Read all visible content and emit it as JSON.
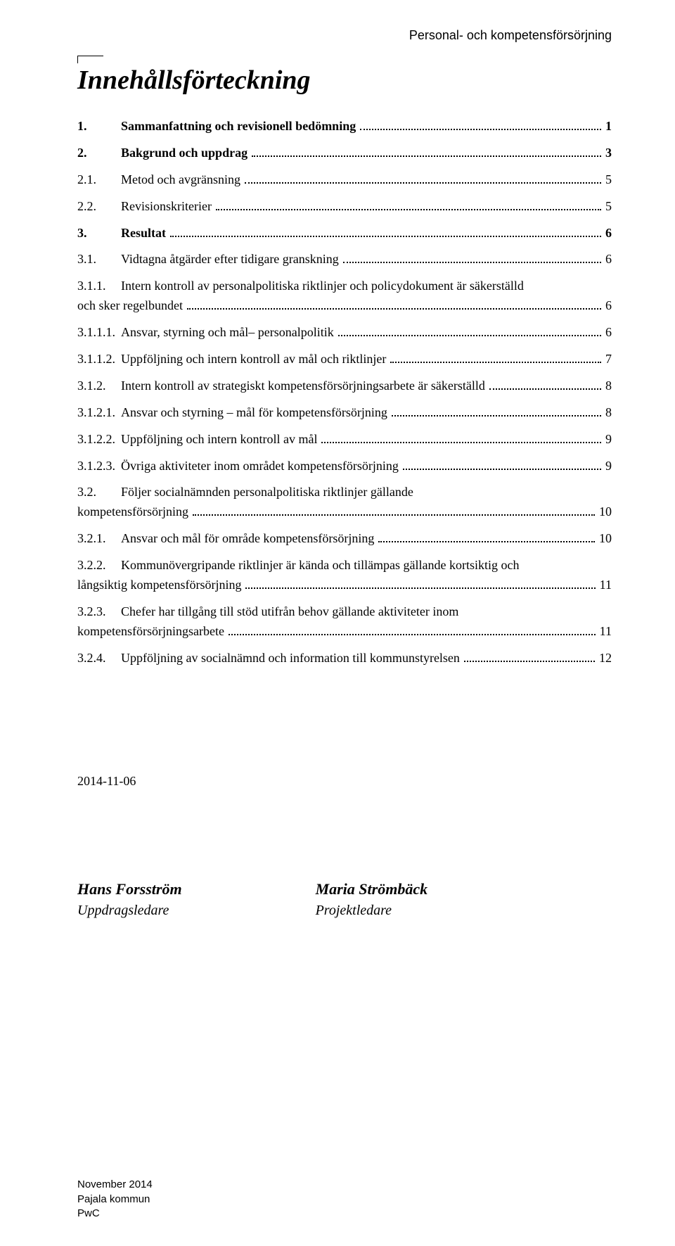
{
  "header_right": "Personal- och kompetensförsörjning",
  "title": "Innehållsförteckning",
  "toc": [
    {
      "num": "1.",
      "label": "Sammanfattning och revisionell bedömning",
      "page": "1",
      "bold": true
    },
    {
      "num": "2.",
      "label": "Bakgrund och uppdrag",
      "page": "3",
      "bold": true
    },
    {
      "num": "2.1.",
      "label": "Metod och avgränsning",
      "page": "5",
      "bold": false
    },
    {
      "num": "2.2.",
      "label": "Revisionskriterier",
      "page": "5",
      "bold": false
    },
    {
      "num": "3.",
      "label": "Resultat",
      "page": "6",
      "bold": true
    },
    {
      "num": "3.1.",
      "label": "Vidtagna åtgärder efter tidigare granskning",
      "page": "6",
      "bold": false
    },
    {
      "num": "3.1.1.",
      "label": "Intern kontroll av personalpolitiska riktlinjer och policydokument är säkerställd",
      "label2": "och sker regelbundet",
      "page": "6",
      "bold": false,
      "wrap": true
    },
    {
      "num": "3.1.1.1.",
      "label": "Ansvar, styrning och mål– personalpolitik",
      "page": "6",
      "bold": false
    },
    {
      "num": "3.1.1.2.",
      "label": "Uppföljning och intern kontroll av mål och riktlinjer",
      "page": "7",
      "bold": false
    },
    {
      "num": "3.1.2.",
      "label": "Intern kontroll av strategiskt kompetensförsörjningsarbete är säkerställd",
      "page": "8",
      "bold": false
    },
    {
      "num": "3.1.2.1.",
      "label": "Ansvar och styrning – mål för kompetensförsörjning",
      "page": "8",
      "bold": false
    },
    {
      "num": "3.1.2.2.",
      "label": "Uppföljning och intern kontroll av mål",
      "page": "9",
      "bold": false
    },
    {
      "num": "3.1.2.3.",
      "label": "Övriga aktiviteter inom området kompetensförsörjning",
      "page": "9",
      "bold": false
    },
    {
      "num": "3.2.",
      "label": "Följer socialnämnden personalpolitiska riktlinjer gällande",
      "label2": "kompetensförsörjning",
      "page": "10",
      "bold": false,
      "wrap": true
    },
    {
      "num": "3.2.1.",
      "label": "Ansvar och mål för område kompetensförsörjning",
      "page": "10",
      "bold": false
    },
    {
      "num": "3.2.2.",
      "label": "Kommunövergripande riktlinjer är kända och tillämpas gällande kortsiktig och",
      "label2": "långsiktig kompetensförsörjning",
      "page": "11",
      "bold": false,
      "wrap": true
    },
    {
      "num": "3.2.3.",
      "label": "Chefer har tillgång till stöd utifrån behov gällande aktiviteter inom",
      "label2": "kompetensförsörjningsarbete",
      "page": "11",
      "bold": false,
      "wrap": true
    },
    {
      "num": "3.2.4.",
      "label": "Uppföljning av socialnämnd och information till kommunstyrelsen",
      "page": "12",
      "bold": false
    }
  ],
  "date": "2014-11-06",
  "signatures": [
    {
      "name": "Hans Forsström",
      "role": "Uppdragsledare"
    },
    {
      "name": "Maria Strömbäck",
      "role": "Projektledare"
    }
  ],
  "footer": [
    "November 2014",
    "Pajala kommun",
    "PwC"
  ]
}
